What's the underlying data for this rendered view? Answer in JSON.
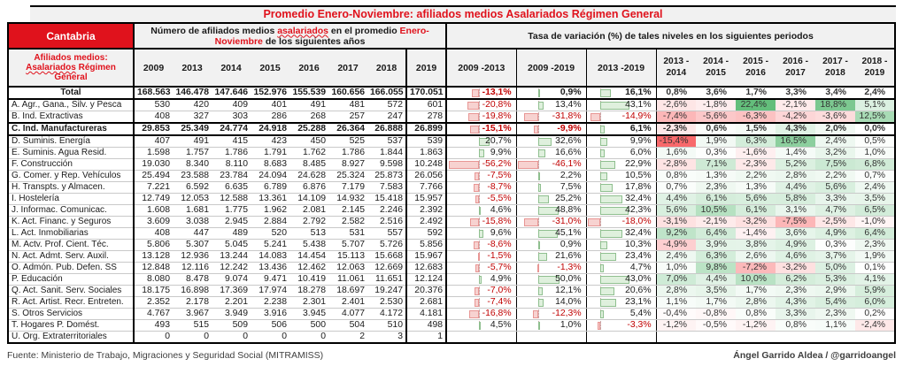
{
  "chart_data": {
    "type": "table",
    "title": "Promedio Enero-Noviembre: afiliados medios Asalariados Régimen General",
    "region": "Cantabria",
    "year_columns": [
      "2009",
      "2013",
      "2014",
      "2015",
      "2016",
      "2017",
      "2018",
      "2019"
    ],
    "period_columns": [
      "2009 -2013",
      "2009 -2019",
      "2013 -2019"
    ],
    "yoy_columns": [
      {
        "line1": "2013 -",
        "line2": "2014"
      },
      {
        "line1": "2014 -",
        "line2": "2015"
      },
      {
        "line1": "2015 -",
        "line2": "2016"
      },
      {
        "line1": "2016 -",
        "line2": "2017"
      },
      {
        "line1": "2017 -",
        "line2": "2018"
      },
      {
        "line1": "2018 -",
        "line2": "2019"
      }
    ],
    "rows": [
      {
        "label": "Total",
        "center": true,
        "emph": true,
        "no_heat": true,
        "values": [
          "168.563",
          "146.478",
          "147.646",
          "152.976",
          "155.539",
          "160.656",
          "166.055",
          "170.051"
        ],
        "periods": [
          "-13,1%",
          "0,9%",
          "16,1%"
        ],
        "yoy": [
          "0,8%",
          "3,6%",
          "1,7%",
          "3,3%",
          "3,4%",
          "2,4%"
        ]
      },
      {
        "label": "A. Agr., Gana., Silv. y Pesca",
        "values": [
          "530",
          "420",
          "409",
          "401",
          "491",
          "481",
          "572",
          "601"
        ],
        "periods": [
          "-20,8%",
          "13,4%",
          "43,1%"
        ],
        "yoy": [
          "-2,6%",
          "-1,8%",
          "22,4%",
          "-2,1%",
          "18,8%",
          "5,1%"
        ]
      },
      {
        "label": "B. Ind. Extractivas",
        "values": [
          "408",
          "327",
          "303",
          "286",
          "268",
          "257",
          "247",
          "278"
        ],
        "periods": [
          "-19,8%",
          "-31,8%",
          "-14,9%"
        ],
        "yoy": [
          "-7,4%",
          "-5,6%",
          "-6,3%",
          "-4,2%",
          "-3,6%",
          "12,5%"
        ]
      },
      {
        "label": "C. Ind. Manufactureras",
        "emph": true,
        "values": [
          "29.853",
          "25.349",
          "24.774",
          "24.918",
          "25.288",
          "26.364",
          "26.888",
          "26.899"
        ],
        "periods": [
          "-15,1%",
          "-9,9%",
          "6,1%"
        ],
        "yoy": [
          "-2,3%",
          "0,6%",
          "1,5%",
          "4,3%",
          "2,0%",
          "0,0%"
        ]
      },
      {
        "label": "D. Suminis. Energía",
        "values": [
          "407",
          "491",
          "415",
          "423",
          "450",
          "525",
          "537",
          "539"
        ],
        "periods": [
          "20,7%",
          "32,6%",
          "9,9%"
        ],
        "yoy": [
          "-15,4%",
          "1,9%",
          "6,3%",
          "16,5%",
          "2,4%",
          "0,5%"
        ]
      },
      {
        "label": "E. Suminis. Agua Resid.",
        "values": [
          "1.598",
          "1.757",
          "1.786",
          "1.791",
          "1.762",
          "1.786",
          "1.844",
          "1.863"
        ],
        "periods": [
          "9,9%",
          "16,6%",
          "6,0%"
        ],
        "yoy": [
          "1,6%",
          "0,3%",
          "-1,6%",
          "1,4%",
          "3,2%",
          "1,0%"
        ]
      },
      {
        "label": "F. Construcción",
        "values": [
          "19.030",
          "8.340",
          "8.110",
          "8.683",
          "8.485",
          "8.927",
          "9.598",
          "10.248"
        ],
        "periods": [
          "-56,2%",
          "-46,1%",
          "22,9%"
        ],
        "yoy": [
          "-2,8%",
          "7,1%",
          "-2,3%",
          "5,2%",
          "7,5%",
          "6,8%"
        ]
      },
      {
        "label": "G. Comer. y Rep. Vehículos",
        "values": [
          "25.494",
          "23.588",
          "23.784",
          "24.094",
          "24.628",
          "25.324",
          "25.873",
          "26.056"
        ],
        "periods": [
          "-7,5%",
          "2,2%",
          "10,5%"
        ],
        "yoy": [
          "0,8%",
          "1,3%",
          "2,2%",
          "2,8%",
          "2,2%",
          "0,7%"
        ]
      },
      {
        "label": "H. Transpts. y Almacen.",
        "values": [
          "7.221",
          "6.592",
          "6.635",
          "6.789",
          "6.876",
          "7.179",
          "7.583",
          "7.766"
        ],
        "periods": [
          "-8,7%",
          "7,5%",
          "17,8%"
        ],
        "yoy": [
          "0,7%",
          "2,3%",
          "1,3%",
          "4,4%",
          "5,6%",
          "2,4%"
        ]
      },
      {
        "label": "I. Hostelería",
        "values": [
          "12.749",
          "12.053",
          "12.588",
          "13.361",
          "14.109",
          "14.932",
          "15.418",
          "15.957"
        ],
        "periods": [
          "-5,5%",
          "25,2%",
          "32,4%"
        ],
        "yoy": [
          "4,4%",
          "6,1%",
          "5,6%",
          "5,8%",
          "3,3%",
          "3,5%"
        ]
      },
      {
        "label": "J. Informac. Comunicac.",
        "values": [
          "1.608",
          "1.681",
          "1.775",
          "1.962",
          "2.081",
          "2.145",
          "2.246",
          "2.392"
        ],
        "periods": [
          "4,6%",
          "48,8%",
          "42,3%"
        ],
        "yoy": [
          "5,6%",
          "10,5%",
          "6,1%",
          "3,1%",
          "4,7%",
          "6,5%"
        ]
      },
      {
        "label": "K. Act. Financ. y Seguros",
        "values": [
          "3.609",
          "3.038",
          "2.945",
          "2.884",
          "2.792",
          "2.582",
          "2.516",
          "2.492"
        ],
        "periods": [
          "-15,8%",
          "-31,0%",
          "-18,0%"
        ],
        "yoy": [
          "-3,1%",
          "-2,1%",
          "-3,2%",
          "-7,5%",
          "-2,5%",
          "-1,0%"
        ]
      },
      {
        "label": "L. Act. Inmobiliarias",
        "values": [
          "408",
          "447",
          "489",
          "520",
          "513",
          "531",
          "557",
          "592"
        ],
        "periods": [
          "9,6%",
          "45,1%",
          "32,4%"
        ],
        "yoy": [
          "9,2%",
          "6,4%",
          "-1,4%",
          "3,6%",
          "4,9%",
          "6,4%"
        ]
      },
      {
        "label": "M. Actv. Prof. Cient. Téc.",
        "values": [
          "5.806",
          "5.307",
          "5.045",
          "5.241",
          "5.438",
          "5.707",
          "5.726",
          "5.856"
        ],
        "periods": [
          "-8,6%",
          "0,9%",
          "10,3%"
        ],
        "yoy": [
          "-4,9%",
          "3,9%",
          "3,8%",
          "4,9%",
          "0,3%",
          "2,3%"
        ]
      },
      {
        "label": "N. Act. Admt. Serv. Auxil.",
        "values": [
          "13.128",
          "12.936",
          "13.244",
          "14.083",
          "14.454",
          "15.113",
          "15.668",
          "15.967"
        ],
        "periods": [
          "-1,5%",
          "21,6%",
          "23,4%"
        ],
        "yoy": [
          "2,4%",
          "6,3%",
          "2,6%",
          "4,6%",
          "3,7%",
          "1,9%"
        ]
      },
      {
        "label": "O. Admón. Pub. Defen. SS",
        "values": [
          "12.848",
          "12.116",
          "12.242",
          "13.436",
          "12.462",
          "12.063",
          "12.669",
          "12.683"
        ],
        "periods": [
          "-5,7%",
          "-1,3%",
          "4,7%"
        ],
        "yoy": [
          "1,0%",
          "9,8%",
          "-7,2%",
          "-3,2%",
          "5,0%",
          "0,1%"
        ]
      },
      {
        "label": "P. Educación",
        "values": [
          "8.080",
          "8.478",
          "9.074",
          "9.471",
          "10.419",
          "11.061",
          "11.651",
          "12.124"
        ],
        "periods": [
          "4,9%",
          "50,0%",
          "43,0%"
        ],
        "yoy": [
          "7,0%",
          "4,4%",
          "10,0%",
          "6,2%",
          "5,3%",
          "4,1%"
        ]
      },
      {
        "label": "Q. Act. Sanit. Serv. Sociales",
        "values": [
          "18.175",
          "16.898",
          "17.369",
          "17.974",
          "18.278",
          "18.697",
          "19.247",
          "20.376"
        ],
        "periods": [
          "-7,0%",
          "12,1%",
          "20,6%"
        ],
        "yoy": [
          "2,8%",
          "3,5%",
          "1,7%",
          "2,3%",
          "2,9%",
          "5,9%"
        ]
      },
      {
        "label": "R. Act. Artist. Recr. Entreten.",
        "values": [
          "2.352",
          "2.178",
          "2.201",
          "2.238",
          "2.301",
          "2.401",
          "2.530",
          "2.681"
        ],
        "periods": [
          "-7,4%",
          "14,0%",
          "23,1%"
        ],
        "yoy": [
          "1,1%",
          "1,7%",
          "2,8%",
          "4,3%",
          "5,4%",
          "6,0%"
        ]
      },
      {
        "label": "S. Otros Servicios",
        "values": [
          "4.767",
          "3.967",
          "3.949",
          "3.916",
          "3.945",
          "4.077",
          "4.172",
          "4.181"
        ],
        "periods": [
          "-16,8%",
          "-12,3%",
          "5,4%"
        ],
        "yoy": [
          "-0,4%",
          "-0,8%",
          "0,8%",
          "3,3%",
          "2,3%",
          "0,2%"
        ]
      },
      {
        "label": "T. Hogares P. Domést.",
        "values": [
          "493",
          "515",
          "509",
          "506",
          "500",
          "504",
          "510",
          "498"
        ],
        "periods": [
          "4,5%",
          "1,0%",
          "-3,3%"
        ],
        "yoy": [
          "-1,2%",
          "-0,5%",
          "-1,2%",
          "0,8%",
          "1,1%",
          "-2,4%"
        ]
      },
      {
        "label": "U. Org. Extraterritoriales",
        "values": [
          "0",
          "0",
          "0",
          "0",
          "0",
          "2",
          "3",
          "1"
        ],
        "periods": [
          "",
          "",
          ""
        ],
        "yoy": [
          "",
          "",
          "",
          "",
          "",
          ""
        ]
      }
    ]
  },
  "header": {
    "group1": {
      "s1": "Número de afiliados medios ",
      "s2": "asalariados",
      "s3": " en el promedio ",
      "s4": "Enero-Noviembre",
      "s5": " de los siguientes años"
    },
    "group2": "Tasa de variación (%) de tales niveles en los siguientes periodos",
    "sub": {
      "s1": "Afiliados medios: ",
      "s2": "Asalariados",
      "s3": " Régimen General"
    }
  },
  "footer": {
    "source": "Fuente: Ministerio de Trabajo, Migraciones y Seguridad Social (MITRAMISS)",
    "credit": "Ángel Garrido Aldea / @garridoangel"
  },
  "colors": {
    "accent_red": "#e0121c",
    "negative_text": "#c00000",
    "heat_negative": "#f8696b",
    "heat_positive": "#63be7b",
    "bar_negative_fill": "#f7d2d0",
    "bar_negative_border": "#e89694",
    "bar_positive_fill": "#dff0dd",
    "bar_positive_border": "#8fbf8f",
    "header_bg": "#f1f1f1"
  }
}
